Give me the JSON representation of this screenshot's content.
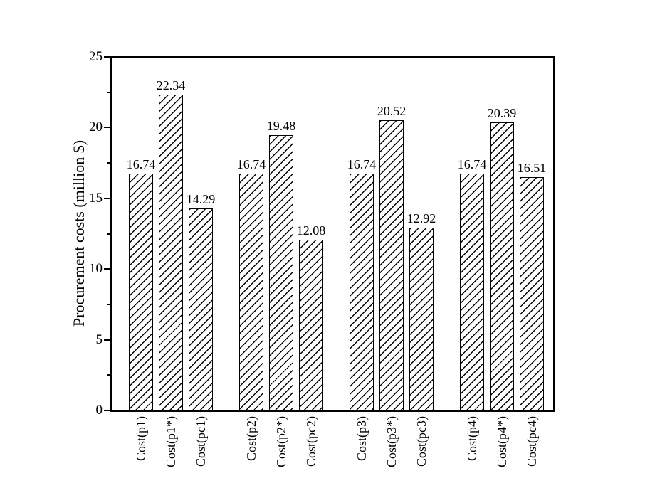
{
  "figure": {
    "background": "#ffffff",
    "text_color": "#000000"
  },
  "chart_data": {
    "type": "bar",
    "title": "",
    "xlabel": "",
    "ylabel": "Procurement costs (million $)",
    "ylim": [
      0,
      25
    ],
    "yticks": [
      0,
      5,
      10,
      15,
      20,
      25
    ],
    "minor_yticks": [
      2.5,
      7.5,
      12.5,
      17.5,
      22.5
    ],
    "grid": false,
    "legend": null,
    "group_size": 3,
    "bar_style": {
      "fill": "#ffffff",
      "edge_color": "#000000",
      "hatch": "forward-diagonal"
    },
    "categories": [
      "Cost(p1)",
      "Cost(p1*)",
      "Cost(pc1)",
      "Cost(p2)",
      "Cost(p2*)",
      "Cost(pc2)",
      "Cost(p3)",
      "Cost(p3*)",
      "Cost(pc3)",
      "Cost(p4)",
      "Cost(p4*)",
      "Cost(pc4)"
    ],
    "values": [
      16.74,
      22.34,
      14.29,
      16.74,
      19.48,
      12.08,
      16.74,
      20.52,
      12.92,
      16.74,
      20.39,
      16.51
    ],
    "value_labels": [
      "16.74",
      "22.34",
      "14.29",
      "16.74",
      "19.48",
      "12.08",
      "16.74",
      "20.52",
      "12.92",
      "16.74",
      "20.39",
      "16.51"
    ]
  }
}
